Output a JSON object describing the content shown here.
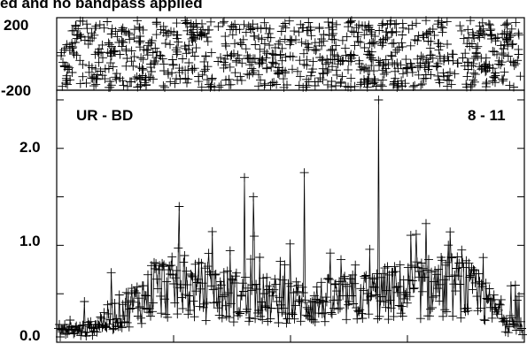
{
  "header": {
    "title": "ed and no bandpass applied"
  },
  "chart_data": [
    {
      "type": "scatter",
      "panel": "phase",
      "ylim": [
        -200,
        200
      ],
      "ytick_labels": [
        "200",
        "-200"
      ],
      "marker": "+",
      "point_count": 900
    },
    {
      "type": "line",
      "panel": "amplitude",
      "baseline_label": "UR - BD",
      "channel_label": "8 - 11",
      "ylim": [
        0.0,
        2.6
      ],
      "ytick_labels": [
        "2.0",
        "1.0",
        "0.0"
      ],
      "yticks": [
        2.0,
        1.0,
        0.0
      ],
      "marker": "+",
      "point_count": 520,
      "envelope": "low near edges (~0.15), rising to ~0.6–0.9 in the middle, spikes up to ~2.5",
      "notable_spikes": [
        {
          "x_fraction": 0.69,
          "y": 2.5
        },
        {
          "x_fraction": 0.53,
          "y": 1.75
        },
        {
          "x_fraction": 0.4,
          "y": 1.7
        },
        {
          "x_fraction": 0.42,
          "y": 1.5
        },
        {
          "x_fraction": 0.26,
          "y": 1.4
        }
      ]
    }
  ]
}
